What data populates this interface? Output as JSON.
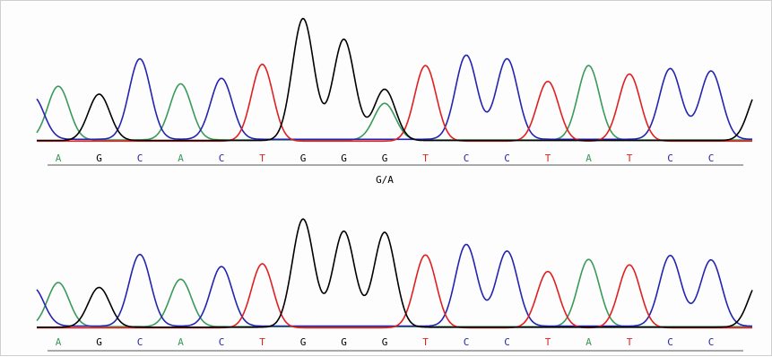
{
  "chart_data": [
    {
      "type": "line",
      "name": "",
      "bases": [
        "A",
        "G",
        "C",
        "A",
        "C",
        "T",
        "G",
        "G",
        "G",
        "T",
        "C",
        "C",
        "T",
        "A",
        "T",
        "C",
        "C"
      ],
      "annotation": "G/A",
      "annotation_at_index": 8,
      "peaks": [
        {
          "base": "A",
          "height": 0.44
        },
        {
          "base": "G",
          "height": 0.38
        },
        {
          "base": "C",
          "height": 0.66
        },
        {
          "base": "A",
          "height": 0.46
        },
        {
          "base": "C",
          "height": 0.5
        },
        {
          "base": "T",
          "height": 0.63
        },
        {
          "base": "G",
          "height": 1.0
        },
        {
          "base": "G",
          "height": 0.83
        },
        {
          "base": "G",
          "height": 0.42
        },
        {
          "base": "T",
          "height": 0.62
        },
        {
          "base": "C",
          "height": 0.69
        },
        {
          "base": "C",
          "height": 0.66
        },
        {
          "base": "T",
          "height": 0.49
        },
        {
          "base": "A",
          "height": 0.61
        },
        {
          "base": "T",
          "height": 0.55
        },
        {
          "base": "C",
          "height": 0.58
        },
        {
          "base": "C",
          "height": 0.56
        }
      ],
      "secondary_peaks": [
        {
          "base": "A",
          "index": 8,
          "height": 0.3
        }
      ]
    },
    {
      "type": "line",
      "name": "",
      "bases": [
        "A",
        "G",
        "C",
        "A",
        "C",
        "T",
        "G",
        "G",
        "G",
        "T",
        "C",
        "C",
        "T",
        "A",
        "T",
        "C",
        "C"
      ],
      "peaks": [
        {
          "base": "A",
          "height": 0.4
        },
        {
          "base": "G",
          "height": 0.36
        },
        {
          "base": "C",
          "height": 0.65
        },
        {
          "base": "A",
          "height": 0.43
        },
        {
          "base": "C",
          "height": 0.54
        },
        {
          "base": "T",
          "height": 0.58
        },
        {
          "base": "G",
          "height": 0.98
        },
        {
          "base": "G",
          "height": 0.87
        },
        {
          "base": "G",
          "height": 0.86
        },
        {
          "base": "T",
          "height": 0.66
        },
        {
          "base": "C",
          "height": 0.74
        },
        {
          "base": "C",
          "height": 0.68
        },
        {
          "base": "T",
          "height": 0.51
        },
        {
          "base": "A",
          "height": 0.61
        },
        {
          "base": "T",
          "height": 0.57
        },
        {
          "base": "C",
          "height": 0.64
        },
        {
          "base": "C",
          "height": 0.6
        }
      ],
      "secondary_peaks": []
    }
  ],
  "colors": {
    "A": "#3a9a5a",
    "G": "#000000",
    "C": "#2424b0",
    "T": "#e02020"
  }
}
